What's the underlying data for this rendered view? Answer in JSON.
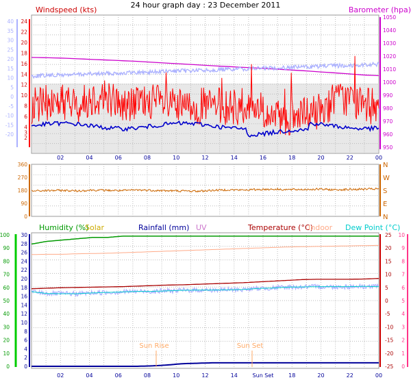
{
  "title": "24 hour graph day : 23 December 2011",
  "hours": [
    "02",
    "04",
    "06",
    "08",
    "10",
    "12",
    "14",
    "16",
    "18",
    "20",
    "22",
    "00"
  ],
  "hours_bottom": [
    "02",
    "04",
    "06",
    "08",
    "10",
    "12",
    "14",
    "Sun Set",
    "18",
    "20",
    "22",
    "00"
  ],
  "colors": {
    "wind": "#ff0000",
    "gust": "#0000cc",
    "baro": "#cc00cc",
    "temp_rough": "#aab0ff",
    "dir": "#cc6600",
    "humidity": "#009900",
    "solar": "#ccaa00",
    "rain": "#000099",
    "uv": "#cc77cc",
    "temp": "#aa0000",
    "indoor": "#ffaa88",
    "dew": "#00cccc",
    "sun_marker": "#ffaa66"
  },
  "chart_data": [
    {
      "type": "line",
      "title": "24 hour graph day : 23 December 2011",
      "series": [
        {
          "name": "Windspeed (kts)",
          "axis": "left",
          "values": [
            8,
            8.5,
            9,
            8,
            9.5,
            10,
            8,
            8.5,
            9,
            8,
            7.5,
            8,
            8,
            7.8,
            7.5,
            7.8,
            5.5,
            5.5,
            6,
            7,
            9,
            9.5,
            8,
            8
          ]
        },
        {
          "name": "Barometer (hpa)",
          "axis": "right",
          "values": [
            1019,
            1018.8,
            1018.5,
            1018,
            1017.5,
            1017,
            1016.5,
            1016,
            1015.3,
            1014.6,
            1014,
            1013.3,
            1012.6,
            1012,
            1011.4,
            1010.8,
            1010.2,
            1009.5,
            1008.8,
            1008,
            1007.2,
            1006.4,
            1005.5,
            1005
          ]
        }
      ],
      "left_axis": {
        "label": "Windspeed (kts)",
        "ticks": [
          2,
          3,
          4,
          6,
          8,
          10,
          12,
          14,
          16,
          18,
          20,
          22,
          24
        ]
      },
      "right_axis": {
        "label": "Barometer (hpa)",
        "ticks": [
          950,
          960,
          970,
          980,
          990,
          1000,
          1010,
          1020,
          1030,
          1040,
          1050
        ],
        "ylim": [
          950,
          1050
        ]
      },
      "far_left_ticks": [
        -20,
        -15,
        -10,
        -5,
        0,
        5,
        10,
        15,
        20,
        25,
        30,
        35,
        40
      ]
    },
    {
      "type": "scatter",
      "series": [
        {
          "name": "Wind direction",
          "values": [
            175,
            178,
            180,
            176,
            182,
            180,
            178,
            183,
            180,
            177,
            176,
            174,
            180,
            184,
            182,
            186,
            188,
            185,
            186,
            188,
            184,
            186,
            188,
            190
          ]
        }
      ],
      "left_axis": {
        "ticks": [
          0,
          90,
          180,
          270,
          360
        ],
        "ylim": [
          0,
          360
        ]
      },
      "right_axis": {
        "ticks": [
          "N",
          "E",
          "S",
          "W",
          "N"
        ]
      }
    },
    {
      "type": "line",
      "series": [
        {
          "name": "Humidity (%)",
          "axis": "humidity",
          "values": [
            93,
            95,
            96,
            97,
            98,
            98,
            99,
            99,
            99,
            99,
            99,
            99,
            99,
            99,
            99,
            99,
            99,
            99,
            99,
            99,
            99,
            99,
            99,
            99
          ]
        },
        {
          "name": "Solar",
          "axis": "humidity",
          "values": [
            0,
            0,
            0,
            0,
            0,
            0,
            0,
            0,
            0,
            0,
            0,
            0,
            0,
            0,
            0,
            0,
            0,
            0,
            0,
            0,
            0,
            0,
            0,
            0
          ]
        },
        {
          "name": "Rainfall (mm)",
          "axis": "rain",
          "values": [
            0,
            0,
            0,
            0,
            0,
            0,
            0,
            0,
            0.1,
            0.3,
            0.6,
            0.7,
            0.8,
            0.8,
            0.8,
            0.8,
            0.8,
            0.8,
            0.8,
            0.8,
            0.8,
            0.8,
            0.8,
            0.8
          ]
        },
        {
          "name": "UV",
          "axis": "rain",
          "values": [
            0,
            0,
            0,
            0,
            0,
            0,
            0,
            0,
            0,
            0,
            0,
            0,
            0,
            0,
            0,
            0,
            0,
            0,
            0,
            0,
            0,
            0,
            0,
            0
          ]
        },
        {
          "name": "Temperature (°C)",
          "axis": "temp",
          "values": [
            4.5,
            4.7,
            4.9,
            5.0,
            5.1,
            5.2,
            5.3,
            5.5,
            5.7,
            5.9,
            6.0,
            6.2,
            6.4,
            6.6,
            6.8,
            7.1,
            7.4,
            7.7,
            8.0,
            8.1,
            8.1,
            8.1,
            8.2,
            8.4
          ]
        },
        {
          "name": "Indoor",
          "axis": "temp",
          "values": [
            17.5,
            17.6,
            17.6,
            17.8,
            17.9,
            18.0,
            18.2,
            18.4,
            18.6,
            18.8,
            19.0,
            19.2,
            19.4,
            19.6,
            19.8,
            20.0,
            20.2,
            20.4,
            20.5,
            20.6,
            20.7,
            20.8,
            20.9,
            21
          ]
        },
        {
          "name": "Dew Point (°C)",
          "axis": "temp",
          "values": [
            3.4,
            2.7,
            2.6,
            2.6,
            2.9,
            3.1,
            3.3,
            3.5,
            3.5,
            3.7,
            3.9,
            4.0,
            4.0,
            4.1,
            4.2,
            4.6,
            4.8,
            5.1,
            5.2,
            5.3,
            5.3,
            5.3,
            5.4,
            5.3
          ]
        }
      ],
      "humidity_axis": {
        "ticks": [
          0,
          10,
          20,
          30,
          40,
          50,
          60,
          70,
          80,
          90,
          100
        ],
        "ylim": [
          0,
          100
        ]
      },
      "rain_axis": {
        "ticks": [
          0,
          2,
          4,
          6,
          8,
          10,
          12,
          14,
          16,
          18,
          20,
          22,
          24,
          26,
          28,
          30
        ],
        "ylim": [
          0,
          30
        ]
      },
      "temp_axis": {
        "ticks": [
          -25,
          -20,
          -15,
          -10,
          -5,
          0,
          5,
          10,
          15,
          20,
          25
        ],
        "ylim": [
          -25,
          25
        ]
      },
      "uv_axis": {
        "ticks": [
          0,
          1,
          2,
          3,
          4,
          5,
          6,
          7,
          8,
          9,
          10
        ],
        "ylim": [
          0,
          10
        ]
      },
      "annotations": [
        "Sun Rise",
        "Sun Set"
      ]
    }
  ]
}
